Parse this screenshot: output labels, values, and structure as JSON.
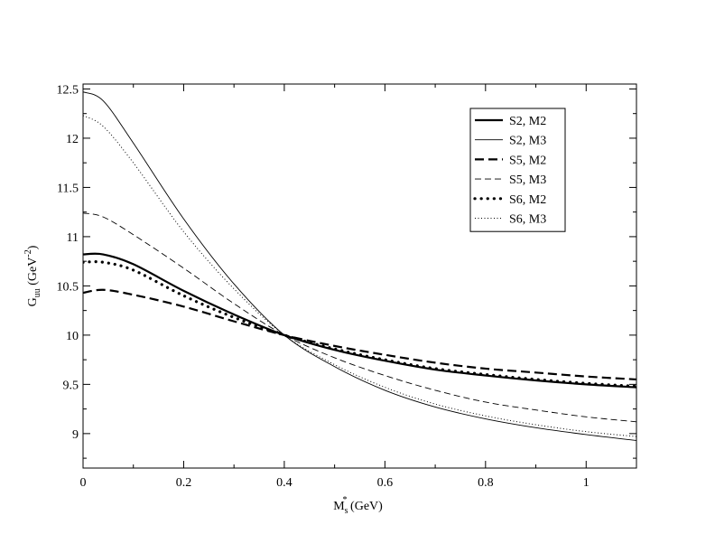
{
  "chart_data": {
    "type": "line",
    "xlabel": {
      "base": "M",
      "sub": "s",
      "sup": "*",
      "unit": " (GeV)"
    },
    "ylabel": {
      "base": "G",
      "sub": "uu",
      "unit_pre": " (GeV",
      "unit_sup": "-2",
      "unit_post": ")"
    },
    "xlim": [
      0,
      1.1
    ],
    "ylim": [
      8.65,
      12.55
    ],
    "xticks": [
      0,
      0.2,
      0.4,
      0.6,
      0.8,
      1
    ],
    "xtick_labels": [
      "0",
      "0.2",
      "0.4",
      "0.6",
      "0.8",
      "1"
    ],
    "yticks": [
      9,
      9.5,
      10,
      10.5,
      11,
      11.5,
      12,
      12.5
    ],
    "ytick_labels": [
      "9",
      "9.5",
      "10",
      "10.5",
      "11",
      "11.5",
      "12",
      "12.5"
    ],
    "grid": false,
    "legend_position": "top-right",
    "x": [
      0,
      0.04,
      0.1,
      0.2,
      0.3,
      0.4,
      0.5,
      0.6,
      0.7,
      0.8,
      0.9,
      1.0,
      1.1
    ],
    "series": [
      {
        "name": "S2, M2",
        "style": "thick-solid",
        "values": [
          10.82,
          10.82,
          10.72,
          10.45,
          10.21,
          10.0,
          9.85,
          9.74,
          9.65,
          9.59,
          9.54,
          9.5,
          9.47
        ]
      },
      {
        "name": "S2, M3",
        "style": "thin-solid",
        "values": [
          12.47,
          12.38,
          11.95,
          11.18,
          10.52,
          10.0,
          9.68,
          9.44,
          9.27,
          9.15,
          9.06,
          8.99,
          8.93
        ]
      },
      {
        "name": "S5, M2",
        "style": "thick-dash",
        "values": [
          10.43,
          10.46,
          10.41,
          10.29,
          10.14,
          10.0,
          9.89,
          9.8,
          9.72,
          9.66,
          9.62,
          9.58,
          9.55
        ]
      },
      {
        "name": "S5, M3",
        "style": "thin-dash",
        "values": [
          11.24,
          11.2,
          11.02,
          10.68,
          10.32,
          10.0,
          9.77,
          9.59,
          9.44,
          9.32,
          9.24,
          9.17,
          9.12
        ]
      },
      {
        "name": "S6, M2",
        "style": "thick-dot",
        "values": [
          10.74,
          10.74,
          10.66,
          10.4,
          10.18,
          10.0,
          9.86,
          9.75,
          9.66,
          9.6,
          9.55,
          9.51,
          9.48
        ]
      },
      {
        "name": "S6, M3",
        "style": "thin-dot",
        "values": [
          12.23,
          12.12,
          11.75,
          11.05,
          10.47,
          10.0,
          9.7,
          9.47,
          9.3,
          9.18,
          9.09,
          9.02,
          8.97
        ]
      }
    ]
  }
}
